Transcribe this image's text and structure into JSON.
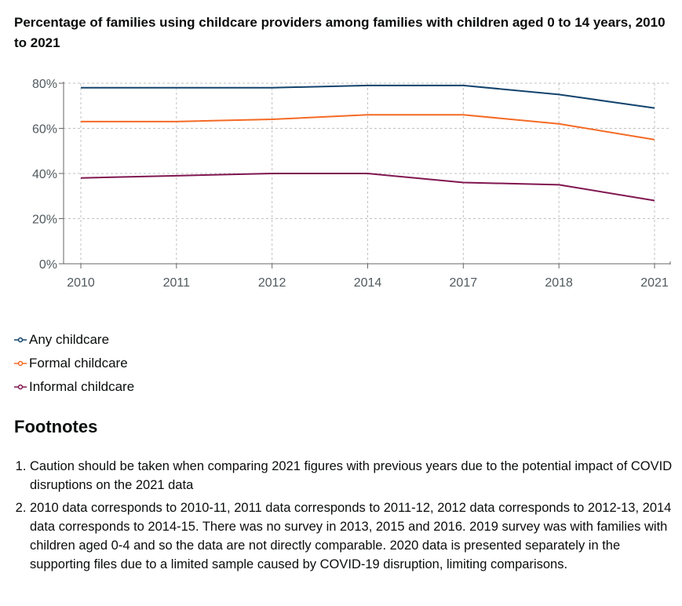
{
  "chart_data": {
    "type": "line",
    "title": "Percentage of families using childcare providers among families with children aged 0 to 14 years, 2010 to 2021",
    "categories": [
      "2010",
      "2011",
      "2012",
      "2014",
      "2017",
      "2018",
      "2021"
    ],
    "y_ticks": [
      "0%",
      "20%",
      "40%",
      "60%",
      "80%"
    ],
    "ylim": [
      0,
      80
    ],
    "grid": true,
    "legend_position": "bottom-left",
    "series": [
      {
        "name": "Any childcare",
        "color": "#12436d",
        "values": [
          78,
          78,
          78,
          79,
          79,
          75,
          69
        ]
      },
      {
        "name": "Formal childcare",
        "color": "#f46a25",
        "values": [
          63,
          63,
          64,
          66,
          66,
          62,
          55
        ]
      },
      {
        "name": "Informal childcare",
        "color": "#801650",
        "values": [
          38,
          39,
          40,
          40,
          36,
          35,
          28
        ]
      }
    ]
  },
  "footnotes": {
    "heading": "Footnotes",
    "items": [
      "Caution should be taken when comparing 2021 figures with previous years due to the potential impact of COVID disruptions on the 2021 data",
      "2010 data corresponds to 2010-11, 2011 data corresponds to 2011-12, 2012 data corresponds to 2012-13, 2014 data corresponds to 2014-15. There was no survey in 2013, 2015 and 2016. 2019 survey was with families with children aged 0-4 and so the data are not directly comparable. 2020 data is presented separately in the supporting files due to a limited sample caused by COVID-19 disruption, limiting comparisons."
    ]
  }
}
